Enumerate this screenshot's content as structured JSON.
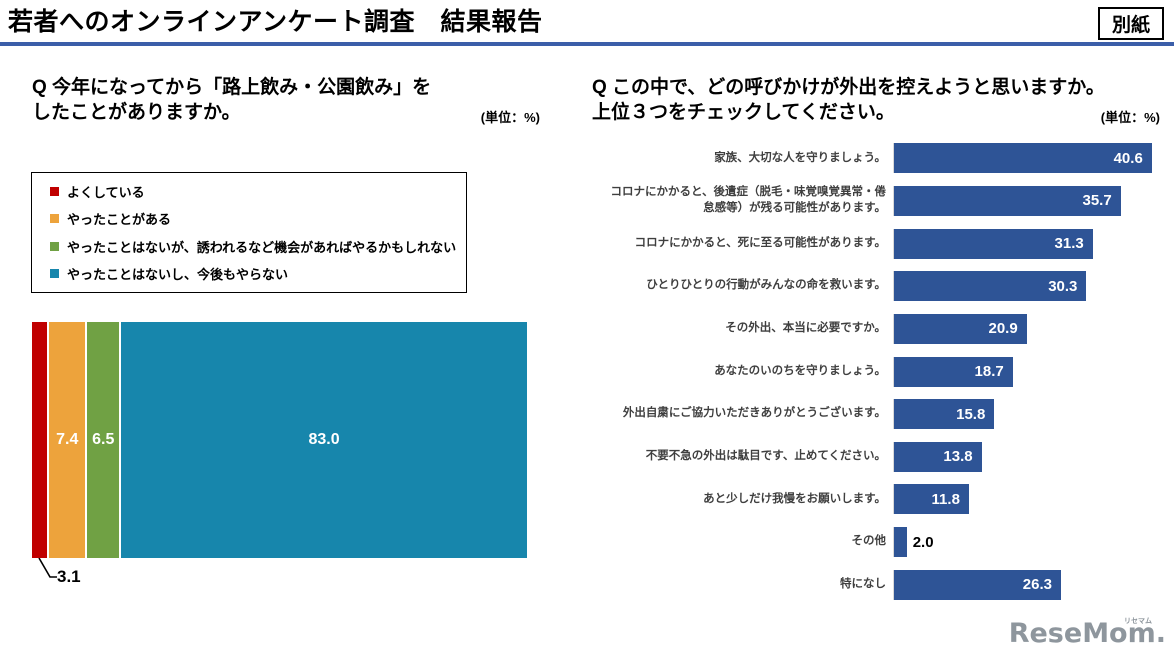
{
  "header": {
    "title": "若者へのオンラインアンケート調査　結果報告",
    "badge": "別紙"
  },
  "colors": {
    "rule_blue": "#3B5EA9",
    "bar_navy": "#2E5496",
    "axis_gray": "#D9D9D9",
    "logo_gray": "#8E969D"
  },
  "left_panel": {
    "question_line1": "Q 今年になってから「路上飲み・公園飲み」を",
    "question_line2": "したことがありますか。",
    "unit": "(単位：%)"
  },
  "right_panel": {
    "question_line1": "Q この中で、どの呼びかけが外出を控えようと思いますか。",
    "question_line2": "上位３つをチェックしてください。",
    "unit": "(単位：%)"
  },
  "footer": {
    "logo_text": "ReseMom.",
    "logo_ruby": "リセマム"
  },
  "chart_data": [
    {
      "type": "bar",
      "subtype": "stacked-horizontal",
      "title": "今年になってから「路上飲み・公園飲み」をしたことがありますか。",
      "unit": "%",
      "categories": [
        "よくしている",
        "やったことがある",
        "やったことはないが、誘われるなど機会があればやるかもしれない",
        "やったことはないし、今後もやらない"
      ],
      "values": [
        3.1,
        7.4,
        6.5,
        83.0
      ],
      "colors": [
        "#C00000",
        "#EDA33C",
        "#70A144",
        "#1786AC"
      ],
      "xlim": [
        0,
        100
      ],
      "legend_position": "top",
      "callout_label": "3.1"
    },
    {
      "type": "bar",
      "subtype": "horizontal",
      "title": "この中で、どの呼びかけが外出を控えようと思いますか。上位３つをチェックしてください。",
      "unit": "%",
      "categories": [
        "家族、大切な人を守りましょう。",
        "コロナにかかると、後遺症（脱毛・味覚嗅覚異常・倦怠感等）が残る可能性があります。",
        "コロナにかかると、死に至る可能性があります。",
        "ひとりひとりの行動がみんなの命を救います。",
        "その外出、本当に必要ですか。",
        "あなたのいのちを守りましょう。",
        "外出自粛にご協力いただきありがとうございます。",
        "不要不急の外出は駄目です、止めてください。",
        "あと少しだけ我慢をお願いします。",
        "その他",
        "特になし"
      ],
      "values": [
        40.6,
        35.7,
        31.3,
        30.3,
        20.9,
        18.7,
        15.8,
        13.8,
        11.8,
        2.0,
        26.3
      ],
      "bar_color": "#2E5496",
      "xlim": [
        0,
        45
      ],
      "grid": false,
      "legend_position": "none"
    }
  ]
}
